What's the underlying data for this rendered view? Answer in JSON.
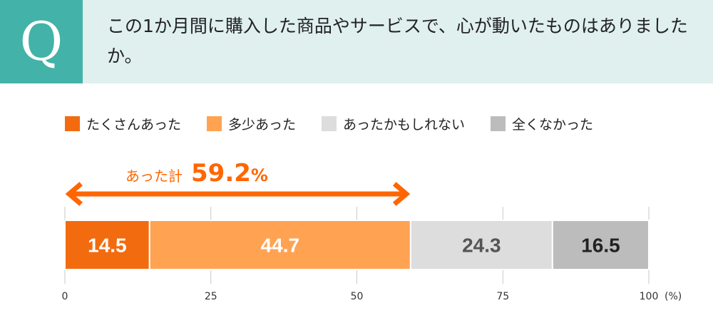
{
  "question": {
    "badge": "Q",
    "text": "この1か月間に購入した商品やサービスで、心が動いたものはありましたか。"
  },
  "colors": {
    "banner_bg": "#dff0ee",
    "badge_bg": "#43b2a8",
    "accent": "#ff6600",
    "gridline": "#c8c8c8",
    "tick_text": "#333333"
  },
  "legend_label": {
    "total_text": "あった計",
    "total_value": "59.2",
    "total_unit": "%"
  },
  "chart_data": {
    "type": "bar",
    "orientation": "horizontal",
    "stacked": true,
    "title": "この1か月間に購入した商品やサービスで、心が動いたものはありましたか。",
    "categories": [
      ""
    ],
    "series": [
      {
        "name": "たくさんあった",
        "values": [
          14.5
        ],
        "color": "#f26b0f",
        "label_color": "#ffffff"
      },
      {
        "name": "多少あった",
        "values": [
          44.7
        ],
        "color": "#ffa352",
        "label_color": "#ffffff"
      },
      {
        "name": "あったかもしれない",
        "values": [
          24.3
        ],
        "color": "#dddddd",
        "label_color": "#555555"
      },
      {
        "name": "全くなかった",
        "values": [
          16.5
        ],
        "color": "#bcbcbc",
        "label_color": "#222222"
      }
    ],
    "xlim": [
      0,
      100
    ],
    "xticks": [
      0,
      25,
      50,
      75,
      100
    ],
    "xlabel": "(%)",
    "grid": true,
    "legend": "top",
    "annotation": {
      "text": "あった計",
      "value": 59.2,
      "unit": "%",
      "range": [
        0,
        59.2
      ]
    }
  }
}
